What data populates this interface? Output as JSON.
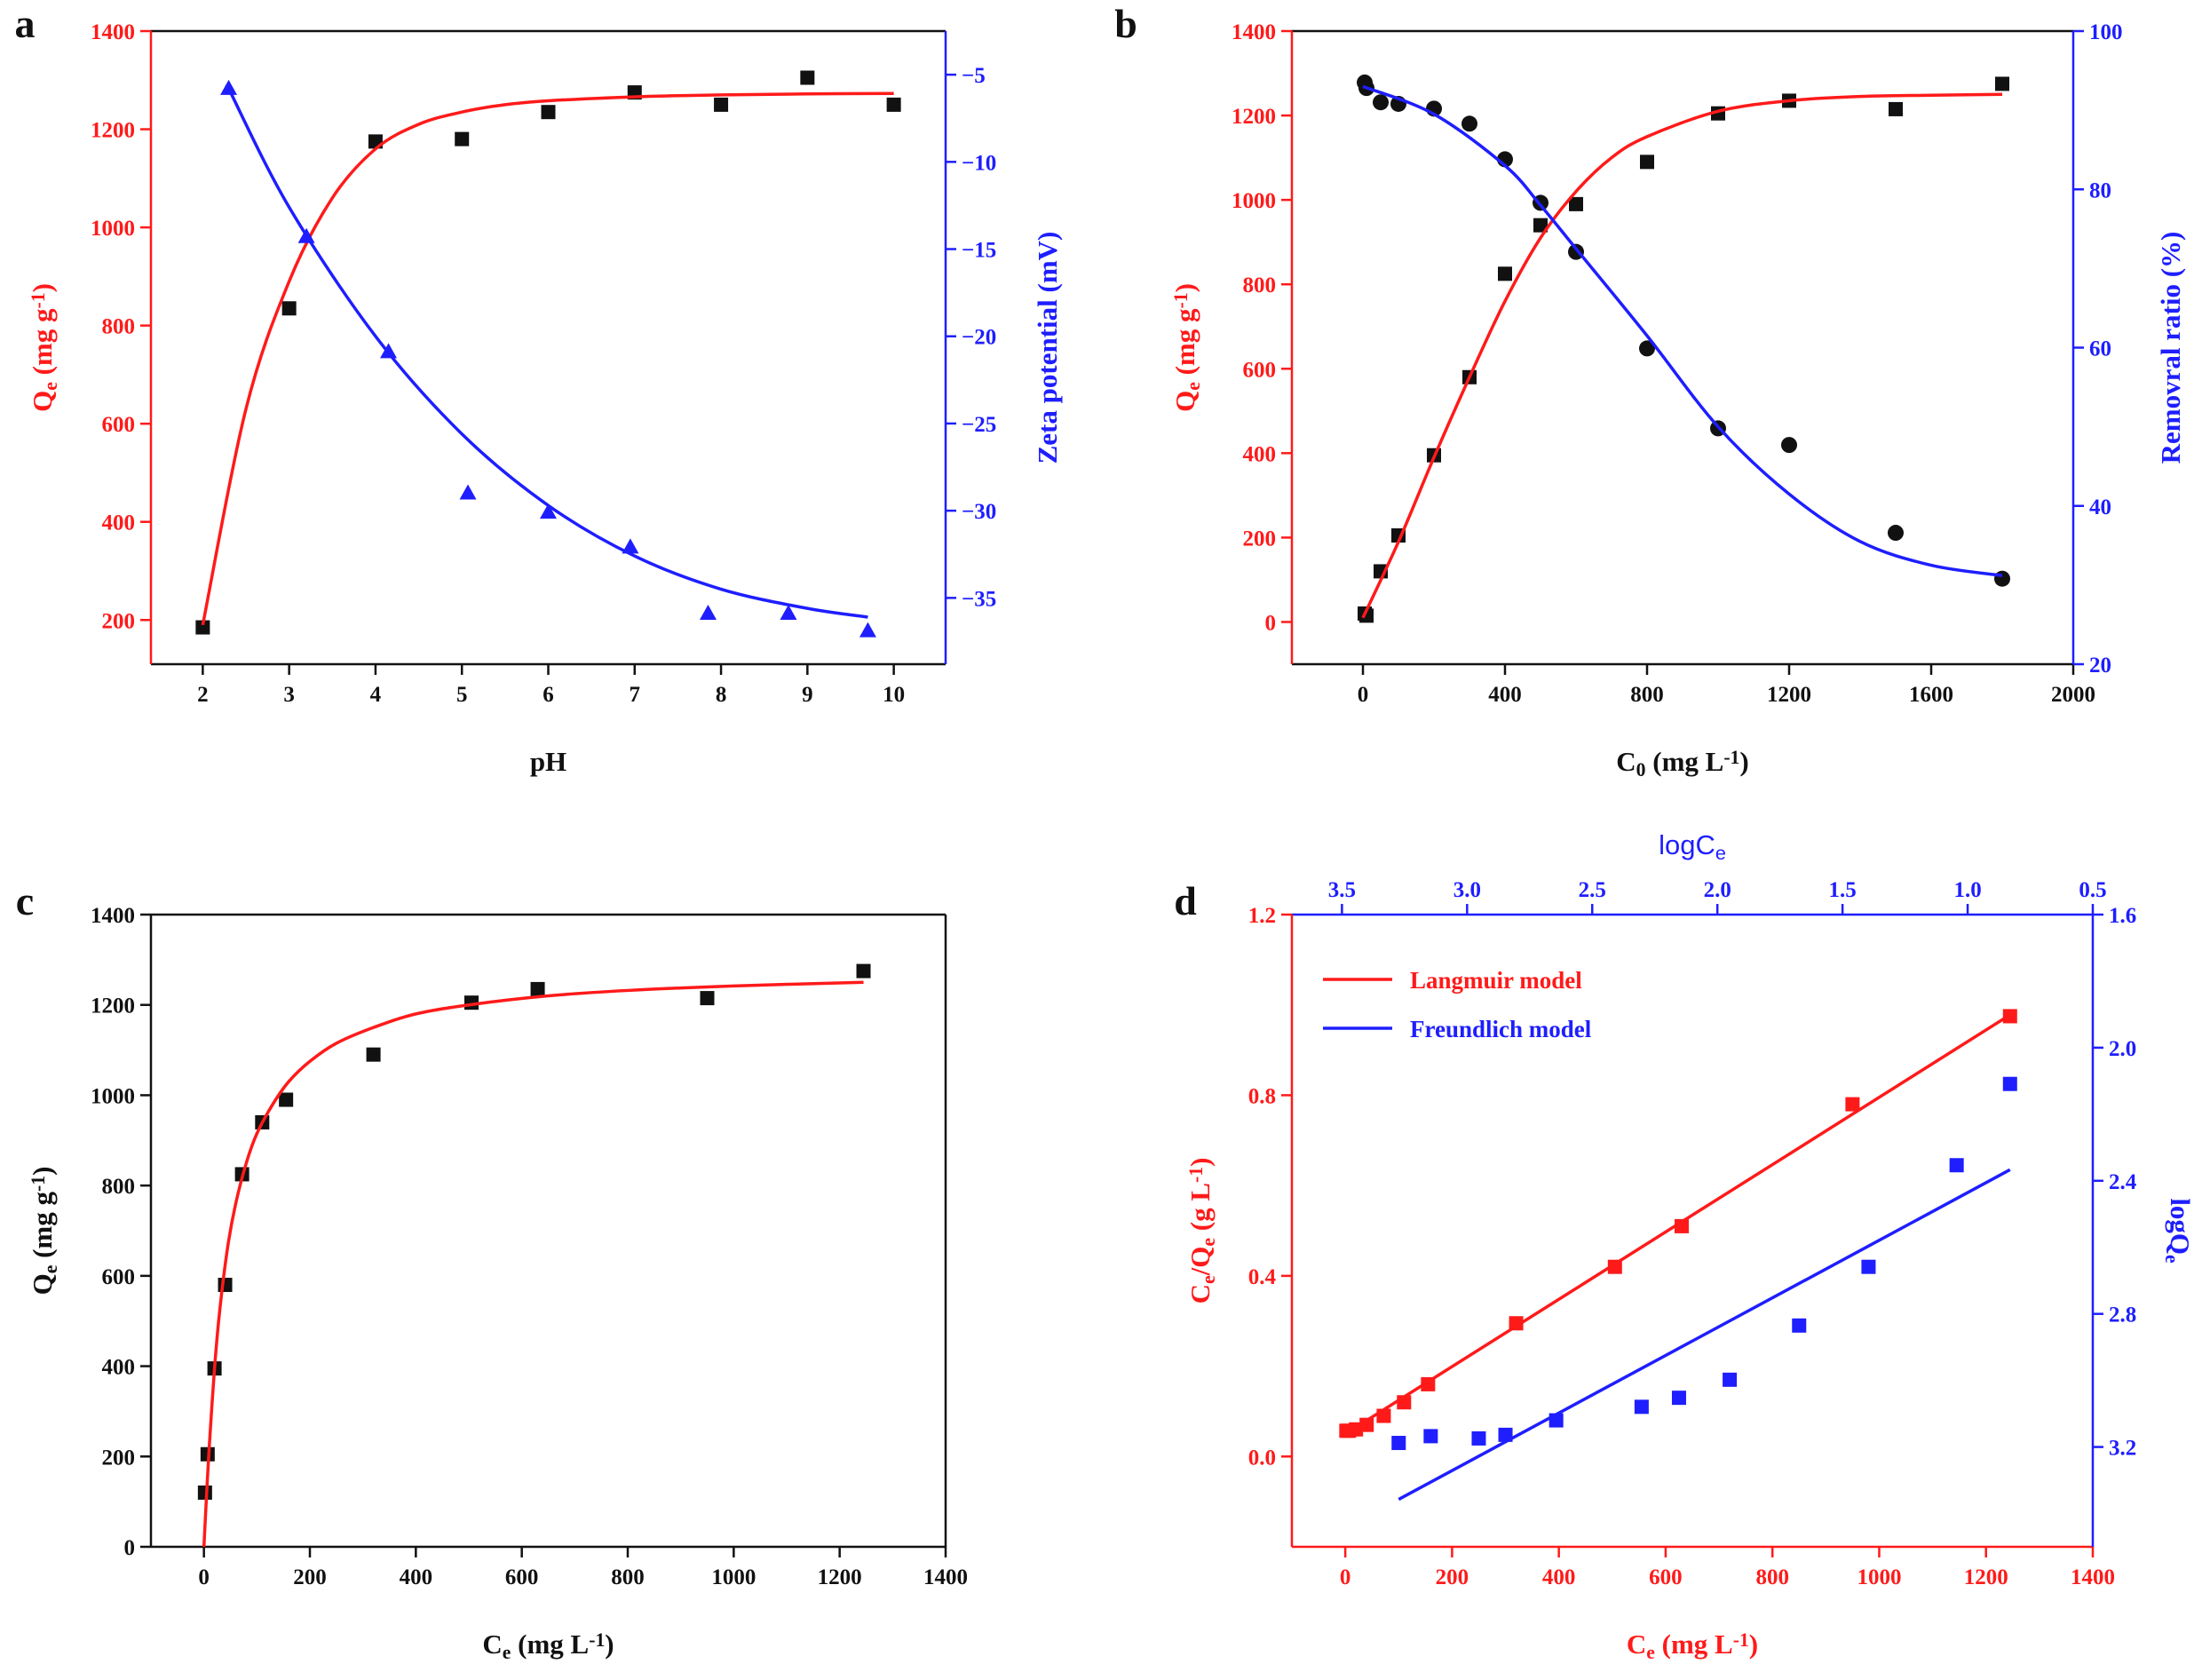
{
  "colors": {
    "red": "#ff1a1a",
    "blue": "#1e1eff",
    "black": "#111111"
  },
  "panels": [
    {
      "label": "a"
    },
    {
      "label": "b"
    },
    {
      "label": "c"
    },
    {
      "label": "d"
    }
  ],
  "chart_data": [
    {
      "panel": "a",
      "type": "scatter",
      "xlabel": "pH",
      "ylabel": "Qe (mg g-1)",
      "ylabel_right": "Zeta potential (mV)",
      "xlim": [
        1.4,
        10.6
      ],
      "ylim": [
        110,
        1400
      ],
      "ylim_right": [
        -38.8,
        -2.5
      ],
      "xticks": [
        2,
        3,
        4,
        5,
        6,
        7,
        8,
        9,
        10
      ],
      "yticks": [
        200,
        400,
        600,
        800,
        1000,
        1200,
        1400
      ],
      "yticks_right": [
        -5,
        -10,
        -15,
        -20,
        -25,
        -30,
        -35
      ],
      "series": [
        {
          "axis": "left",
          "color": "#111111",
          "marker": "square",
          "x": [
            2,
            3,
            4,
            5,
            6,
            7,
            8,
            9,
            10
          ],
          "y": [
            185,
            835,
            1175,
            1180,
            1235,
            1275,
            1250,
            1305,
            1250
          ]
        },
        {
          "axis": "left",
          "color": "#ff1a1a",
          "marker": "line",
          "x": [
            2,
            2.5,
            3,
            3.5,
            4,
            4.5,
            5,
            5.5,
            6,
            7,
            8,
            9,
            10
          ],
          "y": [
            190,
            630,
            890,
            1060,
            1160,
            1210,
            1235,
            1250,
            1258,
            1266,
            1270,
            1272,
            1273
          ]
        },
        {
          "axis": "right",
          "color": "#1e1eff",
          "marker": "triangle",
          "x": [
            2.3,
            3.2,
            4.15,
            5.07,
            6.0,
            6.95,
            7.85,
            8.78,
            9.7
          ],
          "y": [
            -5.8,
            -14.3,
            -20.9,
            -29.0,
            -30.1,
            -32.1,
            -35.9,
            -35.9,
            -36.9
          ]
        },
        {
          "axis": "right",
          "color": "#1e1eff",
          "marker": "line",
          "x": [
            2.3,
            3,
            4,
            5,
            6,
            7,
            8,
            9,
            9.7
          ],
          "y": [
            -5.8,
            -12.6,
            -20.0,
            -25.6,
            -29.7,
            -32.6,
            -34.5,
            -35.6,
            -36.1
          ]
        }
      ]
    },
    {
      "panel": "b",
      "type": "scatter",
      "xlabel": "C0 (mg L-1)",
      "ylabel": "Qe (mg g-1)",
      "ylabel_right": "Removral ratio (%)",
      "xlim": [
        -200,
        2000
      ],
      "ylim": [
        -100,
        1400
      ],
      "ylim_right": [
        20,
        100
      ],
      "xticks": [
        0,
        400,
        800,
        1200,
        1600,
        2000
      ],
      "yticks": [
        0,
        200,
        400,
        600,
        800,
        1000,
        1200,
        1400
      ],
      "yticks_right": [
        20,
        40,
        60,
        80,
        100
      ],
      "series": [
        {
          "axis": "left",
          "color": "#111111",
          "marker": "square",
          "x": [
            5,
            10,
            50,
            100,
            200,
            300,
            400,
            500,
            600,
            800,
            1000,
            1200,
            1500,
            1800
          ],
          "y": [
            20,
            15,
            120,
            205,
            395,
            580,
            825,
            940,
            990,
            1090,
            1205,
            1235,
            1215,
            1275
          ]
        },
        {
          "axis": "left",
          "color": "#ff1a1a",
          "marker": "line",
          "x": [
            0,
            100,
            200,
            300,
            400,
            500,
            600,
            700,
            800,
            1000,
            1200,
            1400,
            1600,
            1800
          ],
          "y": [
            10,
            190,
            390,
            580,
            760,
            910,
            1020,
            1100,
            1150,
            1210,
            1235,
            1245,
            1248,
            1250
          ]
        },
        {
          "axis": "right",
          "color": "#111111",
          "marker": "circle",
          "x": [
            5,
            10,
            50,
            100,
            200,
            300,
            400,
            500,
            600,
            800,
            1000,
            1200,
            1500,
            1800
          ],
          "y": [
            93.5,
            92.8,
            91.0,
            90.8,
            90.2,
            88.3,
            83.8,
            78.3,
            72.1,
            59.9,
            49.8,
            47.7,
            36.6,
            30.8
          ]
        },
        {
          "axis": "right",
          "color": "#1e1eff",
          "marker": "line",
          "x": [
            0,
            200,
            400,
            500,
            600,
            800,
            1000,
            1200,
            1400,
            1600,
            1800
          ],
          "y": [
            93.0,
            89.5,
            83.0,
            78.0,
            72.5,
            61.5,
            50.0,
            41.5,
            35.5,
            32.5,
            31.2
          ]
        }
      ]
    },
    {
      "panel": "c",
      "type": "scatter",
      "xlabel": "Ce (mg L-1)",
      "ylabel": "Qe (mg g-1)",
      "xlim": [
        -100,
        1400
      ],
      "ylim": [
        0,
        1400
      ],
      "xticks": [
        0,
        200,
        400,
        600,
        800,
        1000,
        1200,
        1400
      ],
      "yticks": [
        0,
        200,
        400,
        600,
        800,
        1000,
        1200,
        1400
      ],
      "series": [
        {
          "axis": "left",
          "color": "#111111",
          "marker": "square",
          "x": [
            2,
            7,
            20,
            40,
            72,
            110,
            155,
            320,
            505,
            630,
            950,
            1245
          ],
          "y": [
            120,
            205,
            395,
            580,
            825,
            940,
            990,
            1090,
            1205,
            1235,
            1215,
            1275
          ]
        },
        {
          "axis": "left",
          "color": "#ff1a1a",
          "marker": "line",
          "x": [
            0,
            5,
            10,
            20,
            30,
            45,
            60,
            80,
            100,
            130,
            160,
            200,
            250,
            320,
            400,
            500,
            650,
            800,
            1000,
            1245
          ],
          "y": [
            0,
            115,
            220,
            395,
            525,
            665,
            760,
            850,
            915,
            980,
            1030,
            1075,
            1115,
            1150,
            1180,
            1200,
            1220,
            1232,
            1242,
            1250
          ]
        }
      ]
    },
    {
      "panel": "d",
      "type": "scatter",
      "xlabel": "Ce (mg L-1)",
      "ylabel": "Ce/Qe (g L-1)",
      "xlabel_top": "logCe",
      "ylabel_right": "logQe",
      "xlim": [
        -100,
        1400
      ],
      "ylim": [
        -0.2,
        1.2
      ],
      "xlim_top": [
        3.7,
        0.5
      ],
      "ylim_right": [
        3.5,
        1.6
      ],
      "xticks": [
        0,
        200,
        400,
        600,
        800,
        1000,
        1200,
        1400
      ],
      "yticks": [
        0.0,
        0.4,
        0.8,
        1.2
      ],
      "xticks_top": [
        3.5,
        3.0,
        2.5,
        2.0,
        1.5,
        1.0,
        0.5
      ],
      "yticks_right": [
        1.6,
        2.0,
        2.4,
        2.8,
        3.2
      ],
      "legend": [
        "Langmuir model",
        "Freundlich model"
      ],
      "legend_position": "top-left",
      "series": [
        {
          "name": "Langmuir model",
          "axis": "left",
          "color": "#ff1a1a",
          "marker": "square",
          "x": [
            2,
            7,
            20,
            40,
            72,
            110,
            155,
            320,
            505,
            630,
            950,
            1245
          ],
          "y": [
            0.057,
            0.057,
            0.06,
            0.07,
            0.09,
            0.12,
            0.16,
            0.295,
            0.42,
            0.51,
            0.78,
            0.975
          ]
        },
        {
          "name": "Langmuir model",
          "axis": "left",
          "color": "#ff1a1a",
          "marker": "line",
          "x": [
            0,
            1245
          ],
          "y": [
            0.05,
            0.978
          ]
        },
        {
          "name": "Freundlich model",
          "axis": "left",
          "color": "#1e1eff",
          "marker": "square",
          "x": [
            100,
            160,
            250,
            300,
            395,
            555,
            625,
            720,
            850,
            980,
            1145,
            1245
          ],
          "y": [
            0.03,
            0.045,
            0.04,
            0.048,
            0.08,
            0.11,
            0.13,
            0.17,
            0.29,
            0.42,
            0.645,
            0.825
          ]
        },
        {
          "name": "Freundlich model",
          "axis": "left",
          "color": "#1e1eff",
          "marker": "line",
          "x": [
            100,
            1245
          ],
          "y": [
            -0.095,
            0.635
          ]
        }
      ]
    }
  ]
}
